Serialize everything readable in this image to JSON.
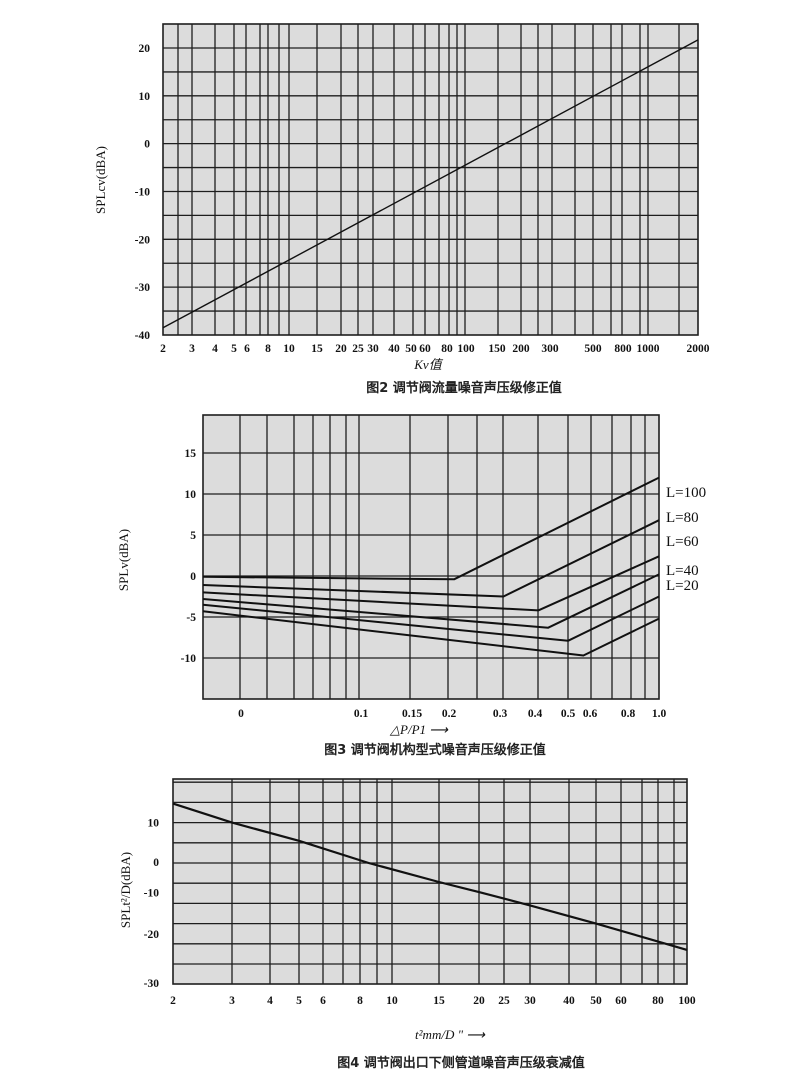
{
  "chart_data": [
    {
      "type": "line",
      "title": "图2  调节阀流量噪音声压级修正值",
      "xlabel": "Kv值",
      "ylabel": "SPLcv(dBA)",
      "xscale": "log",
      "xlim": [
        2,
        2000
      ],
      "ylim": [
        -40,
        25
      ],
      "grid": true,
      "xticks": [
        2,
        3,
        4,
        5,
        6,
        8,
        10,
        15,
        20,
        25,
        30,
        40,
        50,
        60,
        80,
        100,
        150,
        200,
        300,
        500,
        800,
        1000,
        2000
      ],
      "xtick_labels": [
        "2",
        "3",
        "4",
        "5",
        "6",
        "8",
        "10",
        "15",
        "20",
        "25",
        "30",
        "40",
        "50",
        "60",
        "80",
        "100",
        "150",
        "200",
        "300",
        "500",
        "800",
        "1000",
        "2000"
      ],
      "yticks": [
        20,
        10,
        0,
        -10,
        -20,
        -30,
        -40
      ],
      "ytick_labels": [
        "20",
        "10",
        "0",
        "-10",
        "-20",
        "-30",
        "-40"
      ],
      "series": [
        {
          "name": "SPLcv",
          "x": [
            2,
            2000
          ],
          "y": [
            -38.5,
            21.7
          ]
        }
      ]
    },
    {
      "type": "line",
      "title": "图3  调节阀机构型式噪音声压级修正值",
      "xlabel": "△P/P1 ⟶",
      "ylabel": "SPLv(dBA)",
      "xlim": [
        -0.03,
        1.0
      ],
      "ylim": [
        -15,
        19.5
      ],
      "grid": true,
      "xticks": [
        0,
        0.1,
        0.15,
        0.2,
        0.3,
        0.4,
        0.5,
        0.6,
        0.8,
        1.0
      ],
      "xtick_labels": [
        "0",
        "0.1",
        "0.15",
        "0.2",
        "0.3",
        "0.4",
        "0.5",
        "0.6",
        "0.8",
        "1.0"
      ],
      "yticks": [
        15,
        10,
        5,
        0,
        -5,
        -10
      ],
      "ytick_labels": [
        "15",
        "10",
        "5",
        "0",
        "-5",
        "-10"
      ],
      "legend_position": "right",
      "series": [
        {
          "name": "L=100",
          "x": [
            -0.03,
            0.21,
            1.0
          ],
          "y": [
            -0.1,
            -0.4,
            12.0
          ]
        },
        {
          "name": "L=80",
          "x": [
            -0.03,
            0.31,
            1.0
          ],
          "y": [
            -1.1,
            -2.5,
            6.8
          ]
        },
        {
          "name": "L=60",
          "x": [
            -0.03,
            0.41,
            1.0
          ],
          "y": [
            -2.0,
            -4.2,
            2.4
          ]
        },
        {
          "name": "L=40",
          "x": [
            -0.03,
            0.44,
            1.0
          ],
          "y": [
            -2.8,
            -6.3,
            0.2
          ]
        },
        {
          "name": "L=20",
          "x": [
            -0.03,
            0.5,
            1.0
          ],
          "y": [
            -3.5,
            -7.9,
            -2.5
          ]
        },
        {
          "name": null,
          "x": [
            -0.03,
            0.57,
            1.0
          ],
          "y": [
            -4.3,
            -9.7,
            -5.2
          ]
        }
      ]
    },
    {
      "type": "line",
      "title": "图4  调节阀出口下侧管道噪音声压级衰减值",
      "xlabel": "t²mm/D \" ⟶",
      "ylabel": "SPLt²/D(dBA)",
      "xscale": "log",
      "xlim": [
        2,
        100
      ],
      "ylim": [
        -30,
        20
      ],
      "grid": true,
      "xticks": [
        2,
        3,
        4,
        5,
        6,
        8,
        10,
        15,
        20,
        25,
        30,
        40,
        50,
        60,
        80,
        100
      ],
      "xtick_labels": [
        "2",
        "3",
        "4",
        "5",
        "6",
        "8",
        "10",
        "15",
        "20",
        "25",
        "30",
        "40",
        "50",
        "60",
        "80",
        "100"
      ],
      "yticks": [
        10,
        0,
        -10,
        -20,
        -30
      ],
      "ytick_labels": [
        "10",
        "0",
        "-10",
        "-20",
        "-30"
      ],
      "series": [
        {
          "name": "SPLt2/D",
          "x": [
            2,
            3,
            5,
            8.5,
            15,
            20,
            30,
            50,
            100
          ],
          "y": [
            14.7,
            10,
            5.5,
            0,
            -4.7,
            -7.2,
            -10.5,
            -15,
            -21.5
          ]
        }
      ]
    }
  ],
  "colors": {
    "plot_bg": "#dcdcdc",
    "grid": "#1e1e1e",
    "line": "#111111"
  }
}
